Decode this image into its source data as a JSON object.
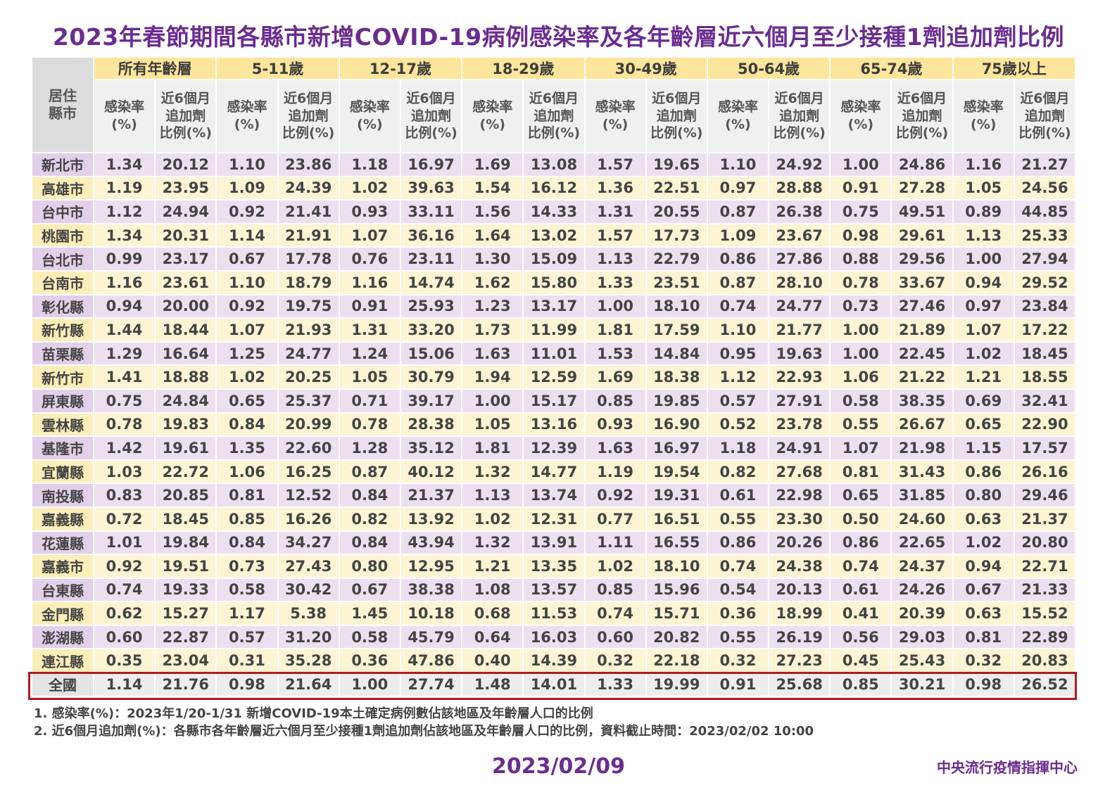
{
  "title": "2023年春節期間各縣市新增COVID-19病例感染率及各年齡層近六個月至少接種1劑追加劑比例",
  "corner_label": "居住\n縣市",
  "age_groups": [
    "所有年齡層",
    "5-11歲",
    "12-17歲",
    "18-29歲",
    "30-49歲",
    "50-64歲",
    "65-74歲",
    "75歲以上"
  ],
  "sub_headers": {
    "infection": "感染率\n(%)",
    "booster": "近6個月\n追加劑\n比例(%)"
  },
  "rows": [
    {
      "city": "新北市",
      "values": [
        "1.34",
        "20.12",
        "1.10",
        "23.86",
        "1.18",
        "16.97",
        "1.69",
        "13.08",
        "1.57",
        "19.65",
        "1.10",
        "24.92",
        "1.00",
        "24.86",
        "1.16",
        "21.27"
      ]
    },
    {
      "city": "高雄市",
      "values": [
        "1.19",
        "23.95",
        "1.09",
        "24.39",
        "1.02",
        "39.63",
        "1.54",
        "16.12",
        "1.36",
        "22.51",
        "0.97",
        "28.88",
        "0.91",
        "27.28",
        "1.05",
        "24.56"
      ]
    },
    {
      "city": "台中市",
      "values": [
        "1.12",
        "24.94",
        "0.92",
        "21.41",
        "0.93",
        "33.11",
        "1.56",
        "14.33",
        "1.31",
        "20.55",
        "0.87",
        "26.38",
        "0.75",
        "49.51",
        "0.89",
        "44.85"
      ]
    },
    {
      "city": "桃園市",
      "values": [
        "1.34",
        "20.31",
        "1.14",
        "21.91",
        "1.07",
        "36.16",
        "1.64",
        "13.02",
        "1.57",
        "17.73",
        "1.09",
        "23.67",
        "0.98",
        "29.61",
        "1.13",
        "25.33"
      ]
    },
    {
      "city": "台北市",
      "values": [
        "0.99",
        "23.17",
        "0.67",
        "17.78",
        "0.76",
        "23.11",
        "1.30",
        "15.09",
        "1.13",
        "22.79",
        "0.86",
        "27.86",
        "0.88",
        "29.56",
        "1.00",
        "27.94"
      ]
    },
    {
      "city": "台南市",
      "values": [
        "1.16",
        "23.61",
        "1.10",
        "18.79",
        "1.16",
        "14.74",
        "1.62",
        "15.80",
        "1.33",
        "23.51",
        "0.87",
        "28.10",
        "0.78",
        "33.67",
        "0.94",
        "29.52"
      ]
    },
    {
      "city": "彰化縣",
      "values": [
        "0.94",
        "20.00",
        "0.92",
        "19.75",
        "0.91",
        "25.93",
        "1.23",
        "13.17",
        "1.00",
        "18.10",
        "0.74",
        "24.77",
        "0.73",
        "27.46",
        "0.97",
        "23.84"
      ]
    },
    {
      "city": "新竹縣",
      "values": [
        "1.44",
        "18.44",
        "1.07",
        "21.93",
        "1.31",
        "33.20",
        "1.73",
        "11.99",
        "1.81",
        "17.59",
        "1.10",
        "21.77",
        "1.00",
        "21.89",
        "1.07",
        "17.22"
      ]
    },
    {
      "city": "苗栗縣",
      "values": [
        "1.29",
        "16.64",
        "1.25",
        "24.77",
        "1.24",
        "15.06",
        "1.63",
        "11.01",
        "1.53",
        "14.84",
        "0.95",
        "19.63",
        "1.00",
        "22.45",
        "1.02",
        "18.45"
      ]
    },
    {
      "city": "新竹市",
      "values": [
        "1.41",
        "18.88",
        "1.02",
        "20.25",
        "1.05",
        "30.79",
        "1.94",
        "12.59",
        "1.69",
        "18.38",
        "1.12",
        "22.93",
        "1.06",
        "21.22",
        "1.21",
        "18.55"
      ]
    },
    {
      "city": "屏東縣",
      "values": [
        "0.75",
        "24.84",
        "0.65",
        "25.37",
        "0.71",
        "39.17",
        "1.00",
        "15.17",
        "0.85",
        "19.85",
        "0.57",
        "27.91",
        "0.58",
        "38.35",
        "0.69",
        "32.41"
      ]
    },
    {
      "city": "雲林縣",
      "values": [
        "0.78",
        "19.83",
        "0.84",
        "20.99",
        "0.78",
        "28.38",
        "1.05",
        "13.16",
        "0.93",
        "16.90",
        "0.52",
        "23.78",
        "0.55",
        "26.67",
        "0.65",
        "22.90"
      ]
    },
    {
      "city": "基隆市",
      "values": [
        "1.42",
        "19.61",
        "1.35",
        "22.60",
        "1.28",
        "35.12",
        "1.81",
        "12.39",
        "1.63",
        "16.97",
        "1.18",
        "24.91",
        "1.07",
        "21.98",
        "1.15",
        "17.57"
      ]
    },
    {
      "city": "宜蘭縣",
      "values": [
        "1.03",
        "22.72",
        "1.06",
        "16.25",
        "0.87",
        "40.12",
        "1.32",
        "14.77",
        "1.19",
        "19.54",
        "0.82",
        "27.68",
        "0.81",
        "31.43",
        "0.86",
        "26.16"
      ]
    },
    {
      "city": "南投縣",
      "values": [
        "0.83",
        "20.85",
        "0.81",
        "12.52",
        "0.84",
        "21.37",
        "1.13",
        "13.74",
        "0.92",
        "19.31",
        "0.61",
        "22.98",
        "0.65",
        "31.85",
        "0.80",
        "29.46"
      ]
    },
    {
      "city": "嘉義縣",
      "values": [
        "0.72",
        "18.45",
        "0.85",
        "16.26",
        "0.82",
        "13.92",
        "1.02",
        "12.31",
        "0.77",
        "16.51",
        "0.55",
        "23.30",
        "0.50",
        "24.60",
        "0.63",
        "21.37"
      ]
    },
    {
      "city": "花蓮縣",
      "values": [
        "1.01",
        "19.84",
        "0.84",
        "34.27",
        "0.84",
        "43.94",
        "1.32",
        "13.91",
        "1.11",
        "16.55",
        "0.86",
        "20.26",
        "0.86",
        "22.65",
        "1.02",
        "20.80"
      ]
    },
    {
      "city": "嘉義市",
      "values": [
        "0.92",
        "19.51",
        "0.73",
        "27.43",
        "0.80",
        "12.95",
        "1.21",
        "13.35",
        "1.02",
        "18.10",
        "0.74",
        "24.38",
        "0.74",
        "24.37",
        "0.94",
        "22.71"
      ]
    },
    {
      "city": "台東縣",
      "values": [
        "0.74",
        "19.33",
        "0.58",
        "30.42",
        "0.67",
        "38.38",
        "1.08",
        "13.57",
        "0.85",
        "15.96",
        "0.54",
        "20.13",
        "0.61",
        "24.26",
        "0.67",
        "21.33"
      ]
    },
    {
      "city": "金門縣",
      "values": [
        "0.62",
        "15.27",
        "1.17",
        "5.38",
        "1.45",
        "10.18",
        "0.68",
        "11.53",
        "0.74",
        "15.71",
        "0.36",
        "18.99",
        "0.41",
        "20.39",
        "0.63",
        "15.52"
      ]
    },
    {
      "city": "澎湖縣",
      "values": [
        "0.60",
        "22.87",
        "0.57",
        "31.20",
        "0.58",
        "45.79",
        "0.64",
        "16.03",
        "0.60",
        "20.82",
        "0.55",
        "26.19",
        "0.56",
        "29.03",
        "0.81",
        "22.89"
      ]
    },
    {
      "city": "連江縣",
      "values": [
        "0.35",
        "23.04",
        "0.31",
        "35.28",
        "0.36",
        "47.86",
        "0.40",
        "14.39",
        "0.32",
        "22.18",
        "0.32",
        "27.23",
        "0.45",
        "25.43",
        "0.32",
        "20.83"
      ]
    }
  ],
  "total_row": {
    "city": "全國",
    "values": [
      "1.14",
      "21.76",
      "0.98",
      "21.64",
      "1.00",
      "27.74",
      "1.48",
      "14.01",
      "1.33",
      "19.99",
      "0.91",
      "25.68",
      "0.85",
      "30.21",
      "0.98",
      "26.52"
    ]
  },
  "notes": [
    "1. 感染率(%)：2023年1/20-1/31  新增COVID-19本土確定病例數佔該地區及年齡層人口的比例",
    "2. 近6個月追加劑(%)：各縣市各年齡層近六個月至少接種1劑追加劑佔該地區及年齡層人口的比例，資料截止時間：2023/02/02  10:00"
  ],
  "date": "2023/02/09",
  "organization": "中央流行疫情指揮中心",
  "colors": {
    "title": "#6a2c91",
    "age_header": "#fde59b",
    "row_purple": "#ece0f0",
    "row_yellow": "#fdf4d4",
    "total_border": "#b21a1e"
  }
}
